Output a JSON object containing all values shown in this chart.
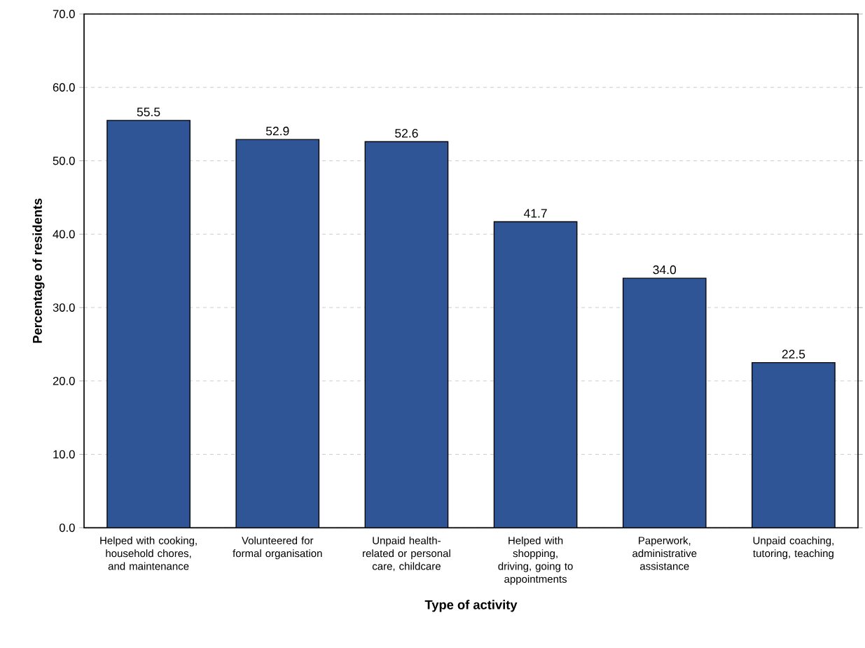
{
  "chart_data": {
    "type": "bar",
    "xlabel": "Type of activity",
    "ylabel": "Percentage of residents",
    "categories": [
      "Helped with cooking, household chores, and maintenance",
      "Volunteered for formal organisation",
      "Unpaid health-related or personal care, childcare",
      "Helped with shopping, driving, going to appointments",
      "Paperwork, administrative assistance",
      "Unpaid coaching, tutoring, teaching"
    ],
    "values": [
      55.5,
      52.9,
      52.6,
      41.7,
      34.0,
      22.5
    ],
    "value_labels": [
      "55.5",
      "52.9",
      "52.6",
      "41.7",
      "34.0",
      "22.5"
    ],
    "color": "#2f5597",
    "grid": "y",
    "ylim": [
      0,
      70
    ],
    "yticks": [
      {
        "value": 0,
        "label": "0.0"
      },
      {
        "value": 10,
        "label": "10.0"
      },
      {
        "value": 20,
        "label": "20.0"
      },
      {
        "value": 30,
        "label": "30.0"
      },
      {
        "value": 40,
        "label": "40.0"
      },
      {
        "value": 50,
        "label": "50.0"
      },
      {
        "value": 60,
        "label": "60.0"
      },
      {
        "value": 70,
        "label": "70.0"
      }
    ]
  }
}
